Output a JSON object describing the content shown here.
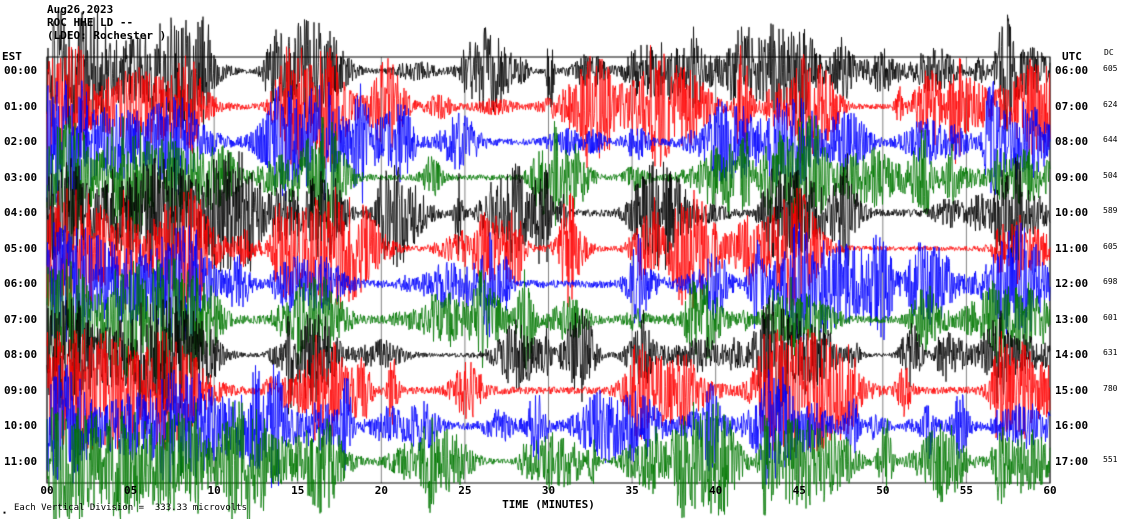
{
  "header": {
    "date": "Aug26,2023",
    "station": "ROC HHE LD --",
    "location": "(LDEO: Rochester )"
  },
  "axis": {
    "left_timezone": "EST",
    "right_timezone": "UTC",
    "dc_header": "DC",
    "x_title": "TIME (MINUTES)",
    "x_ticks": [
      "00",
      "05",
      "10",
      "15",
      "20",
      "25",
      "30",
      "35",
      "40",
      "45",
      "50",
      "55",
      "60"
    ]
  },
  "footer": {
    "scale_note": "Each Vertical Division =  333.33 microvolts",
    "mark": "▪"
  },
  "chart_data": {
    "type": "line",
    "subtype": "helicorder-seismogram",
    "title": "ROC HHE LD -- (LDEO: Rochester) Aug26,2023",
    "xlabel": "TIME (MINUTES)",
    "x_range": [
      0,
      60
    ],
    "x_tick_interval": 5,
    "minutes_per_row": 60,
    "grid": "vertical lines every 5 minutes",
    "vertical_division_microvolts": 333.33,
    "trace_color_cycle": [
      "#000000",
      "#ff0000",
      "#0000ff",
      "#007700"
    ],
    "rows": [
      {
        "est": "00:00",
        "utc": "06:00",
        "dc": "605",
        "color": "#000000"
      },
      {
        "est": "01:00",
        "utc": "07:00",
        "dc": "624",
        "color": "#ff0000"
      },
      {
        "est": "02:00",
        "utc": "08:00",
        "dc": "644",
        "color": "#0000ff"
      },
      {
        "est": "03:00",
        "utc": "09:00",
        "dc": "504",
        "color": "#007700"
      },
      {
        "est": "04:00",
        "utc": "10:00",
        "dc": "589",
        "color": "#000000"
      },
      {
        "est": "05:00",
        "utc": "11:00",
        "dc": "605",
        "color": "#ff0000"
      },
      {
        "est": "06:00",
        "utc": "12:00",
        "dc": "698",
        "color": "#0000ff"
      },
      {
        "est": "07:00",
        "utc": "13:00",
        "dc": "601",
        "color": "#007700"
      },
      {
        "est": "08:00",
        "utc": "14:00",
        "dc": "631",
        "color": "#000000"
      },
      {
        "est": "09:00",
        "utc": "15:00",
        "dc": "780",
        "color": "#ff0000"
      },
      {
        "est": "10:00",
        "utc": "16:00",
        "dc": "",
        "color": "#0000ff"
      },
      {
        "est": "11:00",
        "utc": "17:00",
        "dc": "551",
        "color": "#007700"
      }
    ],
    "waveform_note": "Continuous high-amplitude seismic noise with frequent transient bursts in every hour trace; exact sample values are not resolvable from the image and are procedurally recreated."
  }
}
